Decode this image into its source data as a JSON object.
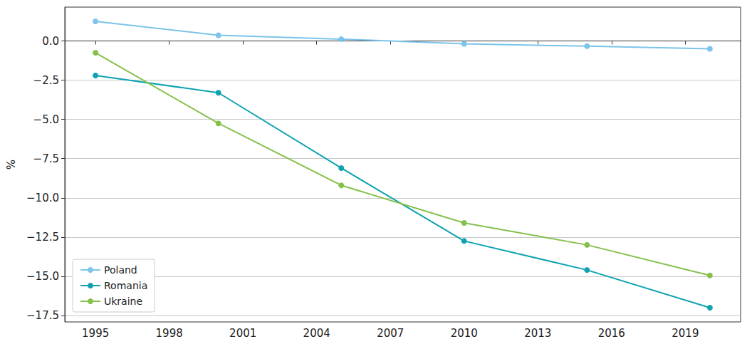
{
  "chart_data": {
    "type": "line",
    "y_label": "%",
    "x": [
      1995,
      2000,
      2005,
      2010,
      2015,
      2020
    ],
    "series": [
      {
        "name": "Poland",
        "color": "#7cc4ea",
        "marker": "circle",
        "line_style": "solid",
        "values": [
          1.25,
          0.37,
          0.12,
          -0.18,
          -0.33,
          -0.5
        ]
      },
      {
        "name": "Romania",
        "color": "#0fa3b1",
        "marker": "circle",
        "line_style": "solid",
        "values": [
          -2.2,
          -3.3,
          -8.1,
          -12.75,
          -14.6,
          -17.0
        ]
      },
      {
        "name": "Ukraine",
        "color": "#86c04c",
        "marker": "circle",
        "line_style": "solid",
        "values": [
          -0.75,
          -5.25,
          -9.2,
          -11.6,
          -13.0,
          -14.95
        ]
      }
    ],
    "xlim": [
      1993.75,
      2021.25
    ],
    "xticks": [
      1995,
      1998,
      2001,
      2004,
      2007,
      2010,
      2013,
      2016,
      2019
    ],
    "ylim": [
      -17.91,
      2.16
    ],
    "yticks": [
      {
        "value": -17.5,
        "label": "−17.5"
      },
      {
        "value": -15,
        "label": "−15.0"
      },
      {
        "value": -12.5,
        "label": "−12.5"
      },
      {
        "value": -10,
        "label": "−10.0"
      },
      {
        "value": -7.5,
        "label": "−7.5"
      },
      {
        "value": -5,
        "label": "−5.0"
      },
      {
        "value": -2.5,
        "label": "−2.5"
      },
      {
        "value": 0,
        "label": "0.0"
      }
    ],
    "grid": true,
    "legend": "lower left"
  }
}
